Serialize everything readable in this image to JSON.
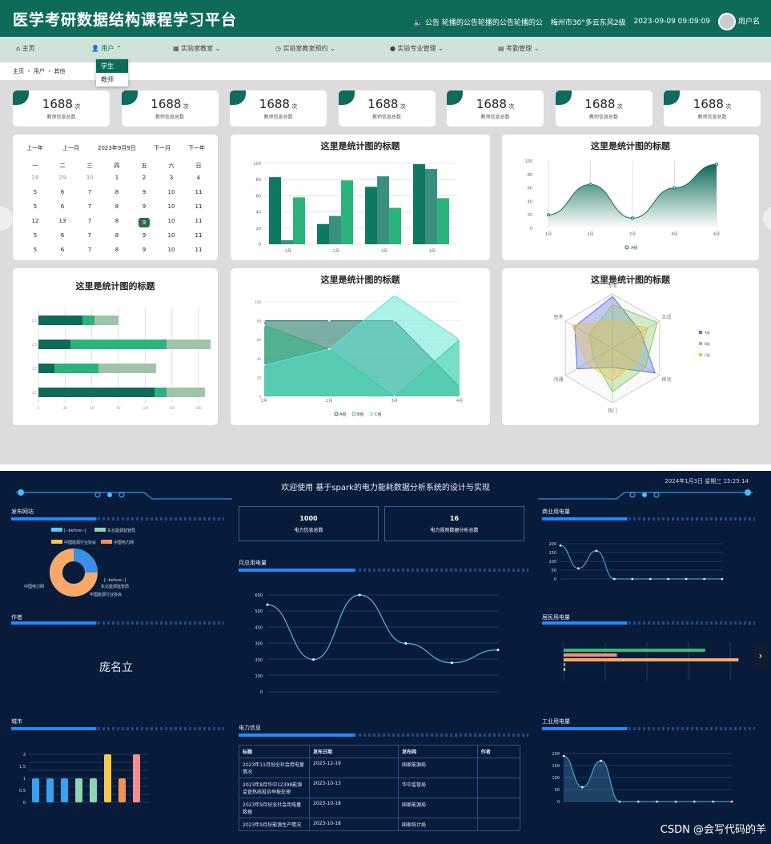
{
  "top": {
    "title": "医学考研数据结构课程学习平台",
    "notice_label": "公告",
    "notice_text": "轮播的公告轮播的公告轮播的公",
    "weather": "梅州市30°多云东风2级",
    "datetime": "2023-09-09 09:09:09",
    "username": "用户名",
    "nav": [
      "主页",
      "用户",
      "实验室教室",
      "实验室教室预约",
      "实验专业管理",
      "考勤管理"
    ],
    "dropdown": [
      "学生",
      "教师"
    ],
    "breadcrumb": [
      "主页",
      "用户",
      "其他"
    ],
    "stat_value": "1688",
    "stat_unit": "次",
    "stat_label": "教师信息总数",
    "calendar": {
      "prev_year": "上一年",
      "prev_month": "上一月",
      "current": "2023年9月9日",
      "next_month": "下一月",
      "next_year": "下一年",
      "weekdays": [
        "一",
        "二",
        "三",
        "四",
        "五",
        "六",
        "日"
      ],
      "rows": [
        [
          "28",
          "29",
          "30",
          "1",
          "2",
          "3",
          "4"
        ],
        [
          "5",
          "6",
          "7",
          "8",
          "9",
          "10",
          "11"
        ],
        [
          "5",
          "6",
          "7",
          "8",
          "9",
          "10",
          "11"
        ],
        [
          "12",
          "13",
          "7",
          "8",
          "9",
          "10",
          "11"
        ],
        [
          "5",
          "6",
          "7",
          "8",
          "9",
          "10",
          "11"
        ],
        [
          "5",
          "6",
          "7",
          "8",
          "9",
          "10",
          "11"
        ]
      ]
    },
    "chart_title": "这里是统计图的标题"
  },
  "chart_data": [
    {
      "type": "bar",
      "title": "这里是统计图的标题",
      "categories": [
        "1月",
        "2月",
        "3月",
        "4月"
      ],
      "series": [
        {
          "values": [
            83,
            25,
            71,
            99
          ]
        },
        {
          "values": [
            5,
            35,
            84,
            93
          ]
        },
        {
          "values": [
            58,
            79,
            45,
            57
          ]
        }
      ],
      "ylim": [
        0,
        100
      ],
      "yticks": [
        "0",
        "20",
        "40",
        "60",
        "80",
        "100"
      ]
    },
    {
      "type": "area",
      "title": "这里是统计图的标题",
      "categories": [
        "1月",
        "2月",
        "3月",
        "4月",
        "4月"
      ],
      "series": [
        {
          "name": "A组",
          "values": [
            20,
            65,
            15,
            60,
            95
          ]
        }
      ],
      "ylim": [
        0,
        100
      ],
      "yticks": [
        "0",
        "20",
        "40",
        "60",
        "80",
        "100"
      ]
    },
    {
      "type": "bar",
      "title": "这里是统计图的标题",
      "orientation": "horizontal",
      "categories": [
        "1月",
        "2月",
        "3月",
        "4月"
      ],
      "series": [
        {
          "values": [
            55,
            40,
            20,
            145
          ]
        },
        {
          "values": [
            15,
            120,
            55,
            15
          ]
        },
        {
          "values": [
            30,
            55,
            72,
            48
          ]
        }
      ],
      "xlim": [
        0,
        200
      ],
      "xticks": [
        "0",
        "30",
        "60",
        "90",
        "120",
        "150",
        "180"
      ]
    },
    {
      "type": "area",
      "title": "这里是统计图的标题",
      "categories": [
        "1月",
        "2月",
        "3月",
        "4月"
      ],
      "series": [
        {
          "name": "A组",
          "values": [
            80,
            80,
            80,
            10
          ]
        },
        {
          "name": "B组",
          "values": [
            75,
            50,
            0,
            60
          ]
        },
        {
          "name": "C组",
          "values": [
            33,
            50,
            107,
            60
          ]
        }
      ],
      "ylim": [
        0,
        100
      ],
      "yticks": [
        "0",
        "20",
        "40",
        "60",
        "80",
        "100"
      ]
    },
    {
      "type": "radar",
      "title": "这里是统计图的标题",
      "indicators": [
        "专业",
        "合适",
        "移动",
        "热门",
        "沟通",
        "思考"
      ],
      "series": [
        {
          "name": "A组"
        },
        {
          "name": "B组"
        },
        {
          "name": "C组"
        }
      ]
    }
  ],
  "bottom": {
    "title": "欢迎使用 基于spark的电力能耗数据分析系统的设计与实现",
    "date": "2024年1月3日 星期三 15:25:14",
    "sections": {
      "sites": "发布网站",
      "authors": "作者",
      "cities": "城市",
      "monthly": "月总用电量",
      "info": "电力信息",
      "commercial": "商业用电量",
      "residential": "居民用电量",
      "industrial": "工业用电量"
    },
    "kpi": [
      {
        "value": "1000",
        "label": "电力信息总数"
      },
      {
        "value": "16",
        "label": "电力规则数据分析总数"
      }
    ],
    "legend": [
      "[--before--]",
      "东北能源监管局",
      "中国能源行业协会",
      "中国电力网"
    ],
    "author_main": "庞名立",
    "table_headers": [
      "标题",
      "发布日期",
      "发布网",
      "作者"
    ],
    "table_rows": [
      [
        "2023年11月份全社会用电量情况",
        "2023-12-19",
        "国家能源局",
        ""
      ],
      [
        "2023年8月华中12398能源监管热线投诉举报处理",
        "2023-10-13",
        "华中监管局",
        ""
      ],
      [
        "2023年9月份全社会用电量数据",
        "2023-10-18",
        "国家能源局",
        ""
      ],
      [
        "2023年9月份能源生产情况",
        "2023-10-18",
        "国家统计局",
        ""
      ]
    ],
    "watermark": "CSDN @会写代码的羊"
  }
}
